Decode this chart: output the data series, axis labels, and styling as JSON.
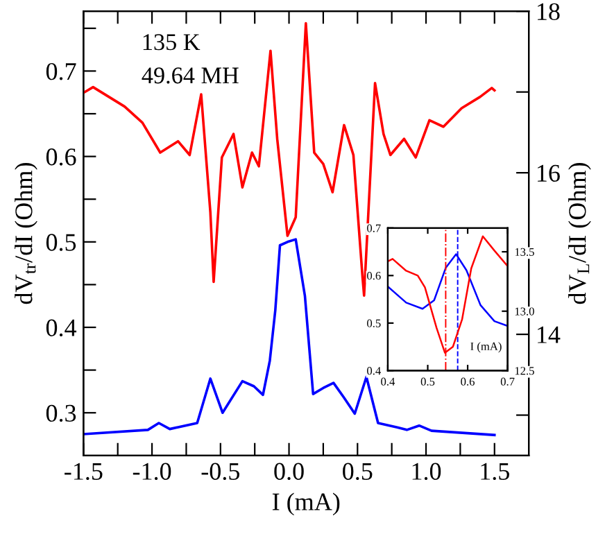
{
  "chart_data": [
    {
      "type": "line",
      "xlabel": "I (mA)",
      "ylabel": "dV$_{tr}$/dI (Ohm)",
      "y2label": "dV$_{L}$/dI (Ohm)",
      "annotations": [
        "135 K",
        "49.64 MH"
      ],
      "line_style": "solid",
      "marker": "none",
      "xlim": [
        -1.5,
        1.75
      ],
      "xticks": [
        {
          "value": -1.5,
          "label": "-1.5"
        },
        {
          "value": -1.25,
          "label": null
        },
        {
          "value": -1.0,
          "label": "-1.0"
        },
        {
          "value": -0.75,
          "label": null
        },
        {
          "value": -0.5,
          "label": "-0.5"
        },
        {
          "value": -0.25,
          "label": null
        },
        {
          "value": 0,
          "label": "0.0"
        },
        {
          "value": 0.25,
          "label": null
        },
        {
          "value": 0.5,
          "label": "0.5"
        },
        {
          "value": 0.75,
          "label": null
        },
        {
          "value": 1.0,
          "label": "1.0"
        },
        {
          "value": 1.25,
          "label": null
        },
        {
          "value": 1.5,
          "label": "1.5"
        }
      ],
      "ylim": [
        0.25,
        0.77
      ],
      "yticks": [
        0.3,
        {
          "value": 0.35,
          "label": null
        },
        0.4,
        {
          "value": 0.45,
          "label": null
        },
        0.5,
        {
          "value": 0.55,
          "label": null
        },
        0.6,
        {
          "value": 0.65,
          "label": null
        },
        0.7,
        {
          "value": 0.75,
          "label": null
        }
      ],
      "y2lim": [
        12.5,
        18
      ],
      "y2ticks": [
        {
          "value": 13,
          "label": null
        },
        14,
        {
          "value": 15,
          "label": null
        },
        16,
        {
          "value": 17,
          "label": null
        },
        18
      ],
      "series": [
        {
          "color": "#ff0000",
          "axis": "y2",
          "x": [
            -1.5,
            -1.43,
            -1.2,
            -1.07,
            -0.94,
            -0.81,
            -0.725,
            -0.641,
            -0.574,
            -0.55,
            -0.49,
            -0.405,
            -0.34,
            -0.27,
            -0.22,
            -0.135,
            -0.086,
            -0.011,
            0.049,
            0.123,
            0.184,
            0.25,
            0.318,
            0.402,
            0.47,
            0.537,
            0.548,
            0.628,
            0.69,
            0.74,
            0.84,
            0.925,
            1.025,
            1.127,
            1.26,
            1.395,
            1.48,
            1.5
          ],
          "values": [
            16.99,
            17.06,
            16.82,
            16.62,
            16.25,
            16.39,
            16.22,
            16.97,
            15.51,
            14.65,
            16.19,
            16.48,
            15.82,
            16.25,
            16.08,
            17.51,
            16.42,
            15.22,
            15.45,
            17.85,
            16.25,
            16.11,
            15.76,
            16.59,
            16.22,
            14.7,
            14.48,
            17.11,
            16.48,
            16.22,
            16.42,
            16.19,
            16.65,
            16.57,
            16.8,
            16.94,
            17.05,
            17.02
          ]
        },
        {
          "color": "#0000ff",
          "axis": "y",
          "x": [
            -1.5,
            -1.03,
            -0.95,
            -0.87,
            -0.67,
            -0.574,
            -0.485,
            -0.34,
            -0.256,
            -0.19,
            -0.14,
            -0.1,
            -0.066,
            -0.011,
            0.049,
            0.116,
            0.176,
            0.25,
            0.325,
            0.4,
            0.48,
            0.565,
            0.65,
            0.79,
            0.86,
            0.95,
            1.04,
            1.5
          ],
          "values": [
            0.275,
            0.28,
            0.288,
            0.281,
            0.288,
            0.34,
            0.3,
            0.337,
            0.331,
            0.321,
            0.361,
            0.42,
            0.496,
            0.5,
            0.503,
            0.437,
            0.322,
            0.329,
            0.335,
            0.318,
            0.299,
            0.342,
            0.288,
            0.283,
            0.28,
            0.285,
            0.279,
            0.274
          ]
        }
      ]
    },
    {
      "type": "line",
      "xlabel": "I (mA)",
      "line_style": "solid",
      "marker": "none",
      "xlim": [
        0.4,
        0.7
      ],
      "xticks": [
        0.4,
        0.5,
        0.6,
        0.7
      ],
      "ylim": [
        0.4,
        0.7
      ],
      "yticks": [
        0.4,
        0.5,
        0.6,
        0.7
      ],
      "y2lim": [
        12.5,
        13.7
      ],
      "y2ticks": [
        12.5,
        {
          "value": 13,
          "label": "13.0"
        },
        13.5
      ],
      "ref_lines": [
        {
          "axis": "x",
          "value": 0.545,
          "color": "#ff0000",
          "line_style": "dashdot"
        },
        {
          "axis": "x",
          "value": 0.575,
          "color": "#0000ff",
          "line_style": "dashed"
        }
      ],
      "series": [
        {
          "color": "#ff0000",
          "axis": "y2",
          "x": [
            0.4,
            0.412,
            0.446,
            0.475,
            0.493,
            0.522,
            0.543,
            0.563,
            0.586,
            0.609,
            0.638,
            0.667,
            0.7
          ],
          "values": [
            13.42,
            13.44,
            13.34,
            13.3,
            13.2,
            12.86,
            12.65,
            12.7,
            12.93,
            13.36,
            13.63,
            13.51,
            13.38
          ]
        },
        {
          "color": "#0000ff",
          "axis": "y",
          "x": [
            0.4,
            0.446,
            0.487,
            0.516,
            0.545,
            0.571,
            0.597,
            0.632,
            0.667,
            0.7
          ],
          "values": [
            0.577,
            0.543,
            0.53,
            0.548,
            0.616,
            0.645,
            0.611,
            0.538,
            0.504,
            0.494
          ]
        }
      ]
    }
  ]
}
